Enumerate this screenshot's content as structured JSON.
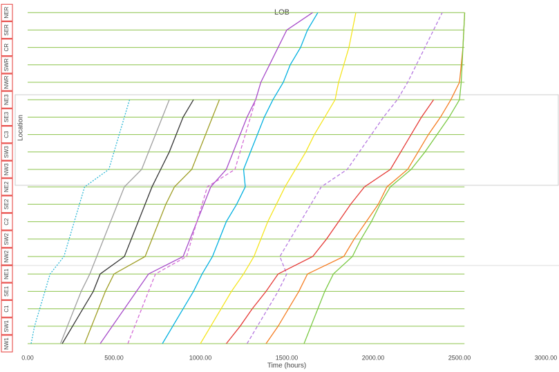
{
  "chart_data": {
    "type": "line",
    "title": "LOB",
    "x_label": "Time (hours)",
    "y_label": "Location",
    "categories": [
      "NW1",
      "SW1",
      "C1",
      "SE1",
      "NE1",
      "NW2",
      "SW2",
      "C2",
      "SE2",
      "NE2",
      "NW3",
      "SW3",
      "C3",
      "SE3",
      "NE3",
      "NWR",
      "SWR",
      "CR",
      "SER",
      "NER"
    ],
    "xlim": [
      0,
      3000
    ],
    "xticks": [
      {
        "value": 0,
        "label": "0.00"
      },
      {
        "value": 500,
        "label": "500.00"
      },
      {
        "value": 1000,
        "label": "1000.00"
      },
      {
        "value": 1500,
        "label": "1500.00"
      },
      {
        "value": 2000,
        "label": "2000.00"
      },
      {
        "value": 2500,
        "label": "2500.00"
      },
      {
        "value": 3000,
        "label": "3000.00"
      }
    ],
    "grid": true,
    "grid_color": "#8bc34a",
    "series": [
      {
        "color": "#29b6d6",
        "dash": "dotted",
        "values": [
          20,
          40,
          70,
          100,
          130,
          210,
          240,
          270,
          300,
          330,
          470,
          500,
          530,
          560,
          590,
          null,
          null,
          null,
          null,
          null
        ]
      },
      {
        "color": "#9e9e9e",
        "dash": "solid",
        "values": [
          190,
          230,
          270,
          310,
          360,
          400,
          440,
          480,
          520,
          560,
          660,
          700,
          740,
          780,
          820,
          null,
          null,
          null,
          null,
          null
        ]
      },
      {
        "color": "#333333",
        "dash": "solid",
        "values": [
          200,
          260,
          320,
          380,
          420,
          560,
          600,
          640,
          680,
          720,
          770,
          820,
          860,
          900,
          960,
          null,
          null,
          null,
          null,
          null
        ]
      },
      {
        "color": "#9e9d24",
        "dash": "solid",
        "values": [
          330,
          370,
          410,
          450,
          500,
          680,
          720,
          760,
          800,
          850,
          950,
          990,
          1030,
          1070,
          1110,
          null,
          null,
          null,
          null,
          null
        ]
      },
      {
        "color": "#a64ac9",
        "dash": "solid",
        "values": [
          420,
          490,
          560,
          630,
          700,
          900,
          940,
          980,
          1020,
          1060,
          1150,
          1190,
          1230,
          1270,
          1320,
          1350,
          1400,
          1450,
          1500,
          1650
        ]
      },
      {
        "color": "#d36bd6",
        "dash": "dashed",
        "values": [
          580,
          620,
          660,
          700,
          740,
          920,
          950,
          980,
          1010,
          1040,
          1200,
          1230,
          1260,
          1290,
          1320,
          null,
          null,
          null,
          null,
          null
        ]
      },
      {
        "color": "#00b0e0",
        "dash": "solid",
        "values": [
          780,
          840,
          900,
          960,
          1010,
          1070,
          1110,
          1150,
          1210,
          1260,
          1250,
          1290,
          1330,
          1370,
          1420,
          1480,
          1520,
          1580,
          1620,
          1680
        ]
      },
      {
        "color": "#f5e51c",
        "dash": "solid",
        "values": [
          1000,
          1060,
          1120,
          1180,
          1250,
          1310,
          1350,
          1390,
          1440,
          1490,
          1550,
          1610,
          1660,
          1720,
          1780,
          1800,
          1830,
          1860,
          1880,
          1900
        ]
      },
      {
        "color": "#b577e0",
        "dash": "dashed",
        "values": [
          1270,
          1330,
          1390,
          1450,
          1500,
          1460,
          1520,
          1580,
          1640,
          1700,
          1850,
          1920,
          1990,
          2060,
          2140,
          2200,
          2250,
          2300,
          2350,
          2400
        ]
      },
      {
        "color": "#e53935",
        "dash": "solid",
        "values": [
          1150,
          1230,
          1300,
          1380,
          1450,
          1650,
          1730,
          1800,
          1870,
          1950,
          2100,
          2160,
          2220,
          2280,
          2350,
          null,
          null,
          null,
          null,
          null
        ]
      },
      {
        "color": "#f57c20",
        "dash": "solid",
        "values": [
          1380,
          1450,
          1510,
          1570,
          1620,
          1830,
          1890,
          1960,
          2030,
          2080,
          2200,
          2260,
          2320,
          2390,
          2450,
          2500,
          2510,
          2520,
          2525,
          2530
        ]
      },
      {
        "color": "#7ac943",
        "dash": "solid",
        "values": [
          1600,
          1640,
          1680,
          1720,
          1770,
          1880,
          1930,
          1990,
          2040,
          2100,
          2220,
          2300,
          2370,
          2440,
          2500,
          2510,
          2515,
          2520,
          2525,
          2530
        ]
      }
    ]
  }
}
